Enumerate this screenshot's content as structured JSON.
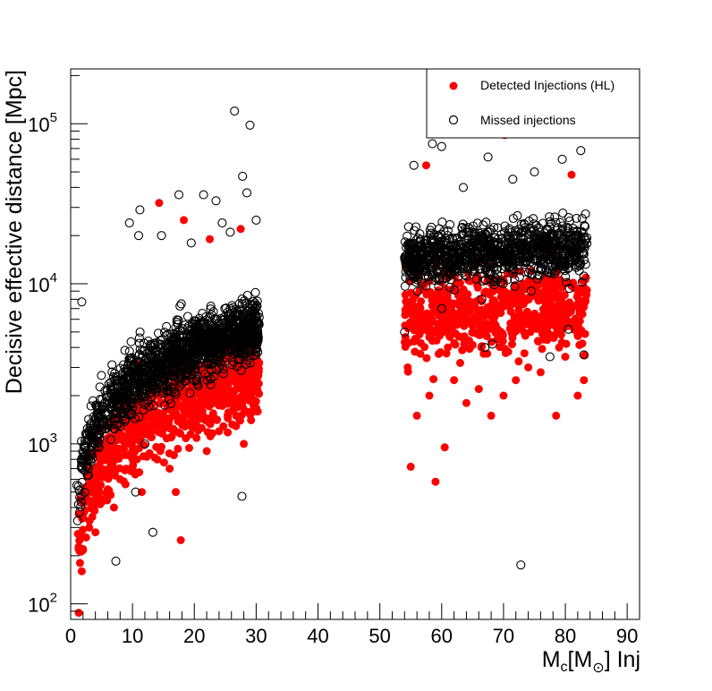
{
  "chart_data": {
    "type": "scatter",
    "title": "",
    "xlabel": {
      "main": "M",
      "sub": "c",
      "bracket_open": "[M",
      "sun_symbol": "⊙",
      "bracket_close": "] Inj"
    },
    "ylabel": "Decisive effective distance [Mpc]",
    "xlim": [
      0,
      92
    ],
    "ylim": [
      80,
      220000
    ],
    "yscale": "log",
    "x_ticks": [
      0,
      10,
      20,
      30,
      40,
      50,
      60,
      70,
      80,
      90
    ],
    "x_tick_labels": [
      "0",
      "10",
      "20",
      "30",
      "40",
      "50",
      "60",
      "70",
      "80",
      "90"
    ],
    "y_ticks": [
      100,
      1000,
      10000,
      100000
    ],
    "y_tick_labels": [
      {
        "base": "10",
        "exp": "2"
      },
      {
        "base": "10",
        "exp": "3"
      },
      {
        "base": "10",
        "exp": "4"
      },
      {
        "base": "10",
        "exp": "5"
      }
    ],
    "legend": {
      "position": "top-right",
      "entries": [
        {
          "label": "Detected Injections (HL)",
          "marker": "filled-circle",
          "color": "#ff0000"
        },
        {
          "label": "Missed injections",
          "marker": "open-circle",
          "color": "#000000"
        }
      ]
    },
    "series": [
      {
        "name": "Detected Injections (HL)",
        "marker": "filled-circle",
        "color": "#ff0000",
        "points": [
          [
            1.3,
            88
          ],
          [
            1.5,
            180
          ],
          [
            1.8,
            160
          ],
          [
            2.0,
            220
          ],
          [
            2.5,
            260
          ],
          [
            3.0,
            300
          ],
          [
            3.5,
            350
          ],
          [
            4.0,
            280
          ],
          [
            5.0,
            450
          ],
          [
            6.0,
            520
          ],
          [
            7.0,
            400
          ],
          [
            8.0,
            600
          ],
          [
            9.0,
            700
          ],
          [
            10.0,
            800
          ],
          [
            11.5,
            500
          ],
          [
            13.0,
            1100
          ],
          [
            14.5,
            900
          ],
          [
            16.0,
            700
          ],
          [
            17.0,
            500
          ],
          [
            17.8,
            250
          ],
          [
            18.5,
            1300
          ],
          [
            20.0,
            1600
          ],
          [
            22.0,
            900
          ],
          [
            24.0,
            1200
          ],
          [
            26.0,
            1800
          ],
          [
            28.0,
            1000
          ],
          [
            29.5,
            2200
          ],
          [
            30.5,
            3200
          ],
          [
            12.0,
            1600
          ],
          [
            15.5,
            2000
          ],
          [
            19.0,
            2500
          ],
          [
            21.0,
            2800
          ],
          [
            23.0,
            3000
          ],
          [
            25.0,
            3400
          ],
          [
            27.0,
            3600
          ],
          [
            29.0,
            4200
          ],
          [
            14.3,
            32000
          ],
          [
            18.3,
            25000
          ],
          [
            22.5,
            19000
          ],
          [
            27.5,
            22000
          ],
          [
            8.5,
            1400
          ],
          [
            6.5,
            1000
          ],
          [
            4.5,
            900
          ],
          [
            3.2,
            700
          ],
          [
            2.2,
            500
          ],
          [
            55.0,
            720
          ],
          [
            59.0,
            580
          ],
          [
            60.5,
            950
          ],
          [
            56.0,
            1500
          ],
          [
            58.0,
            2000
          ],
          [
            62.0,
            2500
          ],
          [
            64.0,
            1800
          ],
          [
            66.0,
            2200
          ],
          [
            68.0,
            1500
          ],
          [
            70.0,
            2000
          ],
          [
            72.0,
            2500
          ],
          [
            74.0,
            3000
          ],
          [
            76.0,
            2800
          ],
          [
            78.5,
            1500
          ],
          [
            80.0,
            3500
          ],
          [
            82.0,
            2000
          ],
          [
            83.0,
            2500
          ],
          [
            57.5,
            55000
          ],
          [
            70.2,
            85000
          ],
          [
            81.0,
            48000
          ],
          [
            61.0,
            4000
          ],
          [
            65.0,
            5000
          ],
          [
            69.0,
            4500
          ],
          [
            73.0,
            5500
          ],
          [
            77.0,
            6000
          ],
          [
            79.0,
            4000
          ],
          [
            54.5,
            3000
          ],
          [
            63.0,
            3200
          ]
        ]
      },
      {
        "name": "Missed injections",
        "marker": "open-circle",
        "color": "#000000",
        "points": [
          [
            1.8,
            7700
          ],
          [
            7.3,
            185
          ],
          [
            13.3,
            280
          ],
          [
            27.7,
            470
          ],
          [
            26.5,
            120000
          ],
          [
            29.0,
            98000
          ],
          [
            27.8,
            47000
          ],
          [
            17.5,
            36000
          ],
          [
            21.5,
            36000
          ],
          [
            23.5,
            33000
          ],
          [
            11.2,
            29000
          ],
          [
            9.5,
            24000
          ],
          [
            11.0,
            20000
          ],
          [
            14.7,
            20000
          ],
          [
            19.5,
            18000
          ],
          [
            24.5,
            24000
          ],
          [
            25.8,
            21000
          ],
          [
            28.5,
            37000
          ],
          [
            30.0,
            25000
          ],
          [
            10.5,
            500
          ],
          [
            12.0,
            1000
          ],
          [
            72.8,
            175
          ],
          [
            58.5,
            75000
          ],
          [
            60.0,
            72000
          ],
          [
            67.5,
            62000
          ],
          [
            79.5,
            60000
          ],
          [
            82.5,
            68000
          ],
          [
            71.5,
            45000
          ],
          [
            55.5,
            55000
          ],
          [
            75.0,
            50000
          ],
          [
            63.5,
            40000
          ],
          [
            66.5,
            8000
          ],
          [
            77.5,
            3500
          ],
          [
            83.0,
            3600
          ],
          [
            67.0,
            4000
          ],
          [
            54.0,
            5000
          ],
          [
            60.0,
            7000
          ],
          [
            68.2,
            4200
          ],
          [
            74.5,
            9000
          ],
          [
            80.5,
            5200
          ]
        ]
      }
    ]
  }
}
